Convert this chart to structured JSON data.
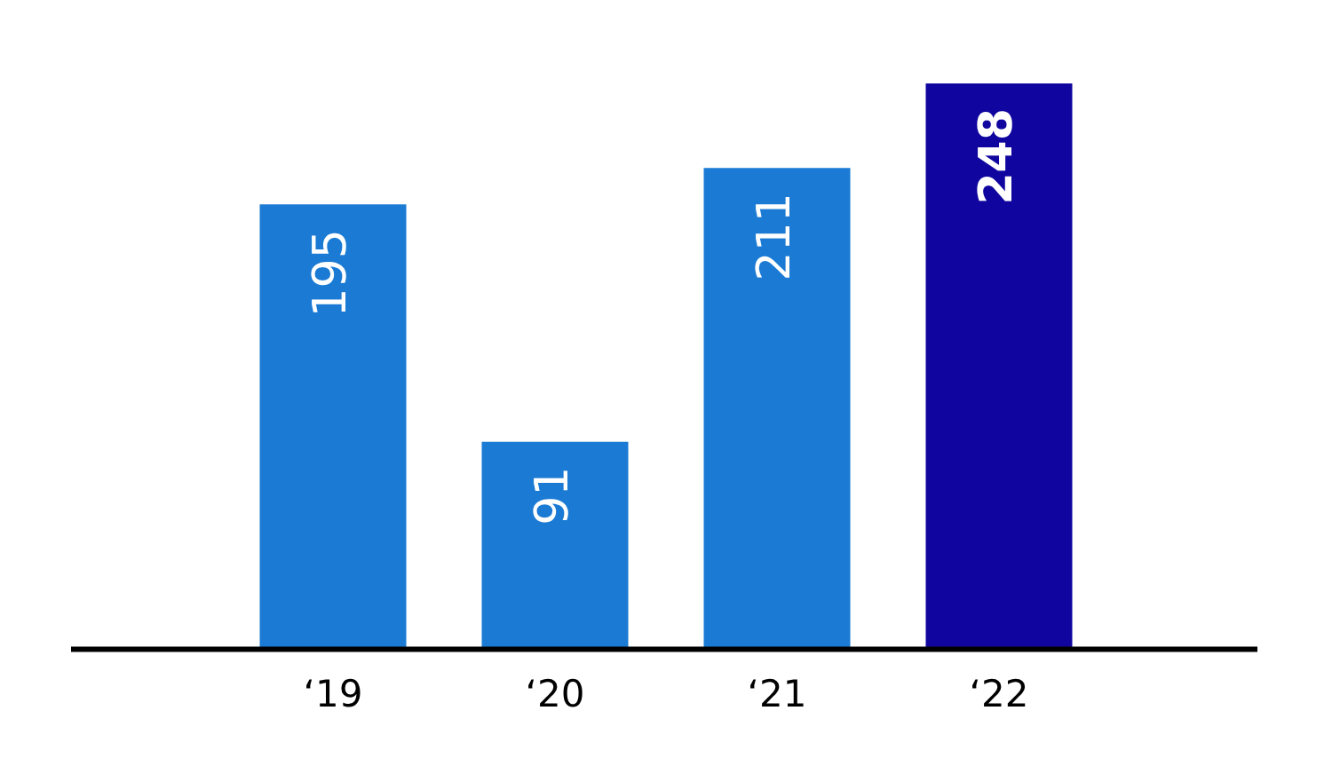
{
  "chart_data": {
    "type": "bar",
    "categories": [
      "‘19",
      "‘20",
      "‘21",
      "‘22"
    ],
    "values": [
      195,
      91,
      211,
      248
    ],
    "colors": [
      "#1a7ad4",
      "#1a7ad4",
      "#1a7ad4",
      "#10069f"
    ],
    "data_labels": true,
    "grid": false,
    "legend": false
  }
}
